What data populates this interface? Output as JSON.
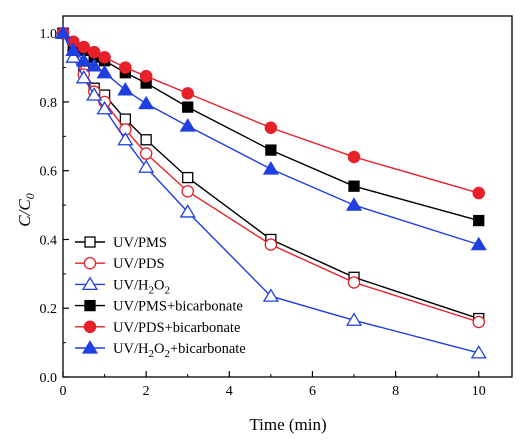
{
  "chart_data": {
    "type": "line",
    "title": "",
    "xlabel": "Time (min)",
    "ylabel_main": "C/C",
    "ylabel_sub": "0",
    "xlim": [
      0,
      10.8
    ],
    "ylim": [
      0,
      1.05
    ],
    "xticks": [
      0,
      2,
      4,
      6,
      8,
      10
    ],
    "yticks": [
      0.0,
      0.2,
      0.4,
      0.6,
      0.8,
      1.0
    ],
    "xtick_labels": [
      "0",
      "2",
      "4",
      "6",
      "8",
      "10"
    ],
    "ytick_labels": [
      "0.0",
      "0.2",
      "0.4",
      "0.6",
      "0.8",
      "1.0"
    ],
    "grid": false,
    "legend_position": "bottom-left",
    "series": [
      {
        "name": "UV/PMS",
        "legend_main": "UV/PMS",
        "legend_sub": "",
        "legend_tail": "",
        "color": "#000000",
        "marker": "square",
        "filled": false,
        "x": [
          0,
          0.25,
          0.5,
          0.75,
          1,
          1.5,
          2,
          3,
          5,
          7,
          10
        ],
        "y": [
          1.0,
          0.96,
          0.89,
          0.84,
          0.82,
          0.75,
          0.69,
          0.58,
          0.4,
          0.29,
          0.17
        ]
      },
      {
        "name": "UV/PDS",
        "legend_main": "UV/PDS",
        "legend_sub": "",
        "legend_tail": "",
        "color": "#e8202a",
        "marker": "circle",
        "filled": false,
        "x": [
          0,
          0.25,
          0.5,
          0.75,
          1,
          1.5,
          2,
          3,
          5,
          7,
          10
        ],
        "y": [
          1.0,
          0.95,
          0.88,
          0.83,
          0.8,
          0.72,
          0.65,
          0.54,
          0.385,
          0.275,
          0.16
        ]
      },
      {
        "name": "UV/H2O2",
        "legend_main": "UV/H",
        "legend_sub": "2",
        "legend_tail": "O",
        "legend_sub2": "2",
        "legend_rest": "",
        "color": "#1f3fe0",
        "marker": "triangle",
        "filled": false,
        "x": [
          0,
          0.25,
          0.5,
          0.75,
          1,
          1.5,
          2,
          3,
          5,
          7,
          10
        ],
        "y": [
          1.0,
          0.93,
          0.87,
          0.82,
          0.78,
          0.69,
          0.61,
          0.48,
          0.235,
          0.165,
          0.07
        ]
      },
      {
        "name": "UV/PMS+bicarbonate",
        "legend_main": "UV/PMS+bicarbonate",
        "legend_sub": "",
        "legend_tail": "",
        "color": "#000000",
        "marker": "square",
        "filled": true,
        "x": [
          0,
          0.25,
          0.5,
          0.75,
          1,
          1.5,
          2,
          3,
          5,
          7,
          10
        ],
        "y": [
          1.0,
          0.96,
          0.95,
          0.93,
          0.92,
          0.885,
          0.855,
          0.785,
          0.66,
          0.555,
          0.455
        ]
      },
      {
        "name": "UV/PDS+bicarbonate",
        "legend_main": "UV/PDS+bicarbonate",
        "legend_sub": "",
        "legend_tail": "",
        "color": "#e8202a",
        "marker": "circle",
        "filled": true,
        "x": [
          0,
          0.25,
          0.5,
          0.75,
          1,
          1.5,
          2,
          3,
          5,
          7,
          10
        ],
        "y": [
          1.0,
          0.975,
          0.96,
          0.945,
          0.93,
          0.9,
          0.875,
          0.825,
          0.725,
          0.64,
          0.535
        ]
      },
      {
        "name": "UV/H2O2+bicarbonate",
        "legend_main": "UV/H",
        "legend_sub": "2",
        "legend_tail": "O",
        "legend_sub2": "2",
        "legend_rest": "+bicarbonate",
        "color": "#1f3fe0",
        "marker": "triangle",
        "filled": true,
        "x": [
          0,
          0.25,
          0.5,
          0.75,
          1,
          1.5,
          2,
          3,
          5,
          7,
          10
        ],
        "y": [
          1.0,
          0.95,
          0.92,
          0.905,
          0.885,
          0.835,
          0.795,
          0.73,
          0.605,
          0.5,
          0.385
        ]
      }
    ]
  }
}
